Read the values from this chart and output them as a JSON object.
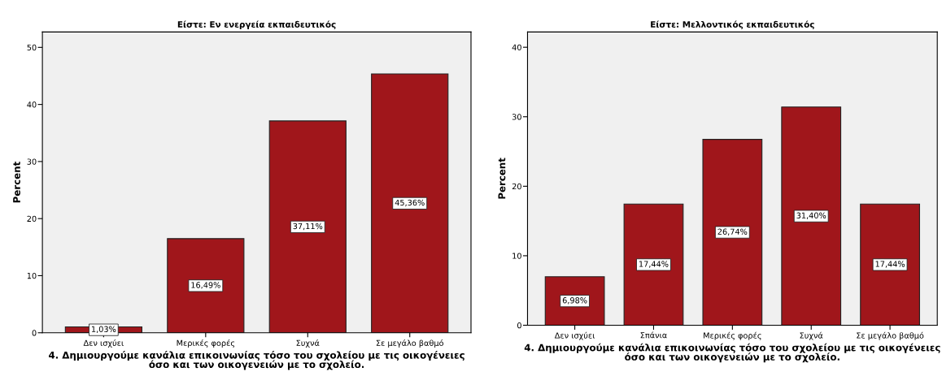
{
  "chart_data": [
    {
      "type": "bar",
      "title": "Είστε: Εν ενεργεία εκπαιδευτικός",
      "xlabel": "4. Δημιουργούμε κανάλια επικοινωνίας τόσο του σχολείου με τις οικογένειες όσο και των οικογενειών με το σχολείο.",
      "ylabel": "Percent",
      "categories": [
        "Δεν ισχύει",
        "Μερικές φορές",
        "Συχνά",
        "Σε μεγάλο βαθμό"
      ],
      "values": [
        1.03,
        16.49,
        37.11,
        45.36
      ],
      "value_labels": [
        "1,03%",
        "16,49%",
        "37,11%",
        "45,36%"
      ],
      "color": "#a0161b",
      "ylim": [
        0,
        52.7
      ],
      "yticks": [
        0,
        10,
        20,
        30,
        40,
        50
      ],
      "grid": false,
      "legend": false
    },
    {
      "type": "bar",
      "title": "Είστε: Μελλοντικός εκπαιδευτικός",
      "xlabel": "4. Δημιουργούμε κανάλια επικοινωνίας τόσο του σχολείου με τις οικογένειες όσο και των οικογενειών με το σχολείο.",
      "ylabel": "Percent",
      "categories": [
        "Δεν ισχύει",
        "Σπάνια",
        "Μερικές φορές",
        "Συχνά",
        "Σε μεγάλο βαθμό"
      ],
      "values": [
        6.98,
        17.44,
        26.74,
        31.4,
        17.44
      ],
      "value_labels": [
        "6,98%",
        "17,44%",
        "26,74%",
        "31,40%",
        "17,44%"
      ],
      "color": "#a0161b",
      "ylim": [
        0,
        42.2
      ],
      "yticks": [
        0,
        10,
        20,
        30,
        40
      ],
      "grid": false,
      "legend": false
    }
  ]
}
